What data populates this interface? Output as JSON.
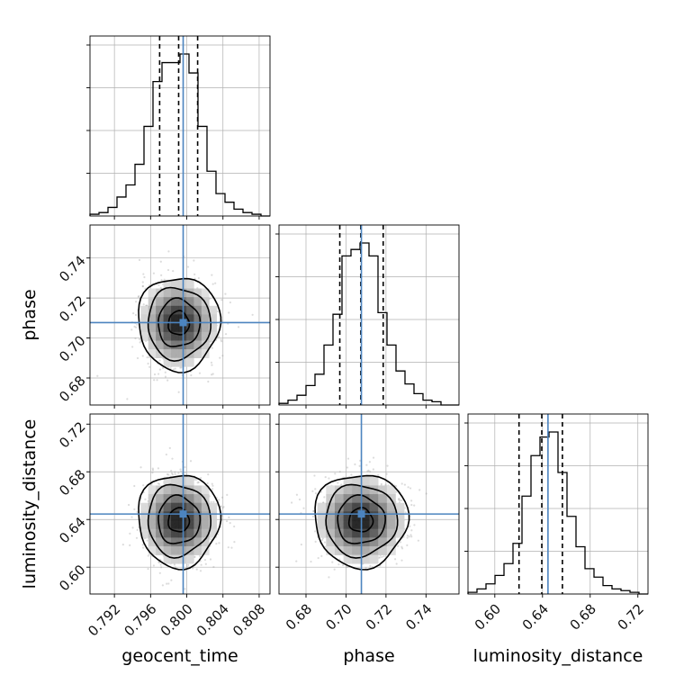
{
  "chart_data": {
    "type": "corner",
    "parameters": [
      {
        "key": "geocent_time",
        "label": "geocent_time"
      },
      {
        "key": "phase",
        "label": "phase"
      },
      {
        "key": "luminosity_distance",
        "label": "luminosity_distance"
      }
    ],
    "ranges": {
      "geocent_time": [
        0.7893,
        0.8092
      ],
      "phase": [
        0.6665,
        0.7565
      ],
      "luminosity_distance": [
        0.5775,
        0.7285
      ]
    },
    "ticks": {
      "geocent_time": [
        0.792,
        0.796,
        0.8,
        0.804,
        0.808
      ],
      "phase": [
        0.68,
        0.7,
        0.72,
        0.74
      ],
      "luminosity_distance": [
        0.6,
        0.64,
        0.68,
        0.72
      ]
    },
    "tick_labels": {
      "geocent_time": [
        "0.792",
        "0.796",
        "0.800",
        "0.804",
        "0.808"
      ],
      "phase": [
        "0.68",
        "0.70",
        "0.72",
        "0.74"
      ],
      "luminosity_distance": [
        "0.60",
        "0.64",
        "0.68",
        "0.72"
      ]
    },
    "truths": {
      "geocent_time": 0.7996,
      "phase": 0.7077,
      "luminosity_distance": 0.6446
    },
    "quantiles": {
      "geocent_time": [
        0.797,
        0.7991,
        0.8012
      ],
      "phase": [
        0.6969,
        0.7074,
        0.7186
      ],
      "luminosity_distance": [
        0.6203,
        0.6394,
        0.6567
      ]
    },
    "histograms": {
      "geocent_time": [
        1,
        2,
        5,
        11,
        18,
        30,
        52,
        78,
        89,
        89,
        94,
        83,
        52,
        26,
        13,
        8,
        4,
        2,
        1,
        0
      ],
      "phase": [
        1,
        3,
        6,
        12,
        19,
        37,
        56,
        92,
        96,
        100,
        92,
        57,
        37,
        21,
        13,
        7,
        3,
        2,
        0,
        0
      ],
      "luminosity_distance": [
        1,
        3,
        6,
        11,
        18,
        30,
        58,
        82,
        93,
        96,
        72,
        46,
        28,
        15,
        10,
        5,
        3,
        2,
        1,
        0
      ]
    },
    "grid": true,
    "legend": "none",
    "colors": {
      "truth": "#4c84bf",
      "histogram": "#000000",
      "quantile": "#000000",
      "grid": "#b0b0b0",
      "contour_fill": "#808080",
      "scatter": "#9a9a9a"
    }
  }
}
